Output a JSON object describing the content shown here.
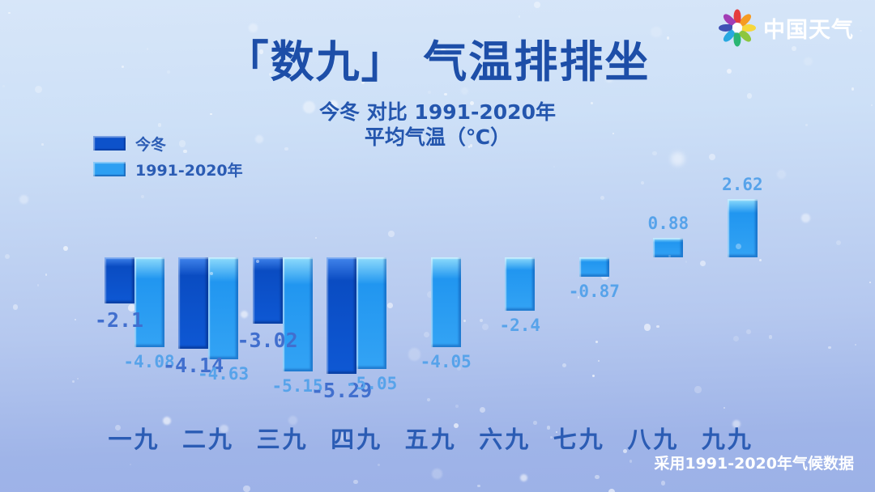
{
  "logo": {
    "text": "中国天气",
    "petal_colors": [
      "#e53e3e",
      "#f59b23",
      "#f6d73b",
      "#8dc63f",
      "#2bb673",
      "#29a8e0",
      "#3f51b5",
      "#a23db5"
    ]
  },
  "title": "「数九」  气温排排坐",
  "subtitle": {
    "line1": "今冬 对比  1991-2020年",
    "line2": "平均气温（℃）"
  },
  "legend": {
    "items": [
      {
        "label": "今冬",
        "color": "#0d52ca"
      },
      {
        "label": "1991-2020年",
        "color": "#2d9ff2"
      }
    ]
  },
  "footer": "采用1991-2020年气候数据",
  "colors": {
    "title_text": "#1d4ea8",
    "axis_text": "#2b5cb4",
    "dark_series_label": "#416fce",
    "light_series_label": "#57a3ea",
    "background_top": "#d7e6f9",
    "background_bottom": "#9cb1e7"
  },
  "chart_data": {
    "type": "bar",
    "title": "「数九」 气温排排坐",
    "subtitle": "今冬 对比 1991-2020年 平均气温（℃）",
    "unit": "℃",
    "categories": [
      "一九",
      "二九",
      "三九",
      "四九",
      "五九",
      "六九",
      "七九",
      "八九",
      "九九"
    ],
    "series": [
      {
        "name": "今冬",
        "color": "#0d52ca",
        "values": [
          -2.1,
          -4.14,
          -3.02,
          -5.29,
          null,
          null,
          null,
          null,
          null
        ]
      },
      {
        "name": "1991-2020年",
        "color": "#2d9ff2",
        "values": [
          -4.08,
          -4.63,
          -5.15,
          -5.05,
          -4.05,
          -2.4,
          -0.87,
          0.88,
          2.62
        ]
      }
    ],
    "baseline_value": 0,
    "ylim": [
      -6,
      3
    ],
    "grid": false,
    "axis_lines": false,
    "legend_position": "top-left",
    "value_labels": true
  }
}
